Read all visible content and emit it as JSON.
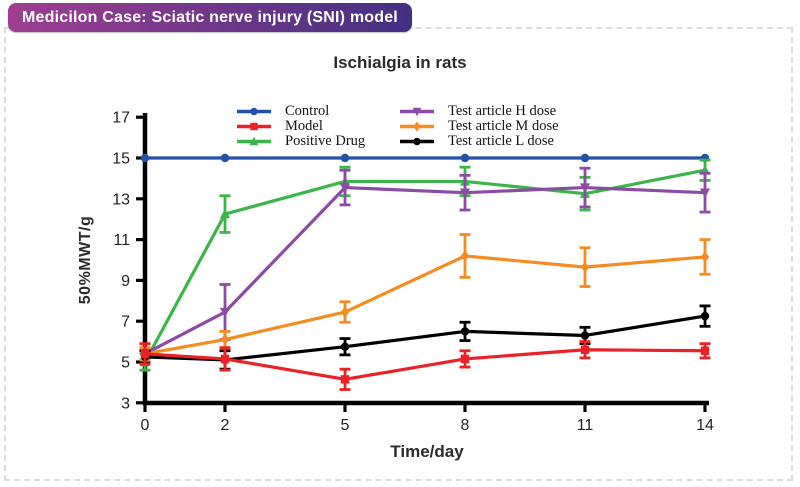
{
  "badge": {
    "text": "Medicilon Case: Sciatic nerve injury (SNI) model",
    "color_left": "#9F3E92",
    "color_right": "#433082"
  },
  "text_color": "#231F20",
  "axis_color": "#000000",
  "border_color": "#dcdcdc",
  "chart_data": {
    "type": "line",
    "title": "Ischialgia in rats",
    "xlabel": "Time/day",
    "ylabel": "50%MWT/g",
    "x": [
      0,
      2,
      5,
      8,
      11,
      14
    ],
    "xticks": [
      0,
      2,
      5,
      8,
      11,
      14
    ],
    "yticks": [
      3,
      5,
      7,
      9,
      11,
      13,
      15,
      17
    ],
    "xlim": [
      0,
      14
    ],
    "ylim": [
      3,
      17
    ],
    "grid": false,
    "legend_position": "top-inside-two-columns",
    "error_bars": true,
    "series": [
      {
        "name": "Control",
        "color": "#2152A5",
        "marker": "circle",
        "values": [
          15,
          15,
          15,
          15,
          15,
          15
        ],
        "errors": [
          0,
          0,
          0,
          0,
          0,
          0
        ]
      },
      {
        "name": "Model",
        "color": "#EC2027",
        "marker": "square",
        "values": [
          5.4,
          5.15,
          4.15,
          5.15,
          5.6,
          5.55
        ],
        "errors": [
          0.5,
          0.55,
          0.5,
          0.4,
          0.4,
          0.35
        ]
      },
      {
        "name": "Positive Drug",
        "color": "#3BB54A",
        "marker": "triangle-up",
        "values": [
          5.0,
          12.25,
          13.85,
          13.85,
          13.25,
          14.4
        ],
        "errors": [
          0.4,
          0.9,
          0.7,
          0.7,
          0.8,
          0.5
        ]
      },
      {
        "name": "Test article H dose",
        "color": "#8C4BA4",
        "marker": "triangle-down",
        "values": [
          5.4,
          7.45,
          13.55,
          13.3,
          13.55,
          13.3
        ],
        "errors": [
          0.3,
          1.35,
          0.85,
          0.85,
          0.95,
          0.95
        ]
      },
      {
        "name": "Test article M dose",
        "color": "#F68B1F",
        "marker": "diamond",
        "values": [
          5.4,
          6.1,
          7.45,
          10.2,
          9.65,
          10.15
        ],
        "errors": [
          0.3,
          0.4,
          0.5,
          1.05,
          0.95,
          0.85
        ]
      },
      {
        "name": "Test article L dose",
        "color": "#000000",
        "marker": "circle",
        "values": [
          5.25,
          5.1,
          5.75,
          6.5,
          6.3,
          7.25
        ],
        "errors": [
          0.3,
          0.45,
          0.4,
          0.45,
          0.4,
          0.5
        ]
      }
    ],
    "draw_order": [
      0,
      2,
      3,
      4,
      5,
      1
    ]
  }
}
